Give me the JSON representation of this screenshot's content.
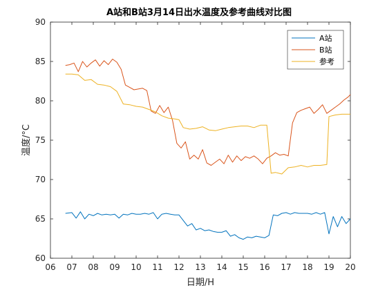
{
  "chart_data": {
    "type": "line",
    "title": "A站和B站3月14日出水温度及参考曲线对比图",
    "xlabel": "日期/H",
    "ylabel": "温度/°C",
    "xlim": [
      6,
      20
    ],
    "ylim": [
      60,
      90
    ],
    "xticks": [
      "06",
      "07",
      "08",
      "09",
      "10",
      "11",
      "12",
      "13",
      "14",
      "15",
      "16",
      "17",
      "18",
      "19",
      "20"
    ],
    "yticks": [
      "60",
      "65",
      "70",
      "75",
      "80",
      "85",
      "90"
    ],
    "grid": false,
    "legend_position": "top-right",
    "series": [
      {
        "name": "A站",
        "color": "#0072BD",
        "x": [
          6.7,
          7.0,
          7.2,
          7.4,
          7.6,
          7.8,
          8.0,
          8.2,
          8.4,
          8.6,
          8.8,
          9.0,
          9.2,
          9.4,
          9.6,
          9.8,
          10.0,
          10.2,
          10.4,
          10.6,
          10.8,
          11.0,
          11.2,
          11.4,
          11.6,
          11.8,
          12.0,
          12.2,
          12.4,
          12.6,
          12.8,
          13.0,
          13.2,
          13.4,
          13.6,
          13.8,
          14.0,
          14.2,
          14.4,
          14.6,
          14.8,
          15.0,
          15.2,
          15.4,
          15.6,
          15.8,
          16.0,
          16.2,
          16.4,
          16.6,
          16.8,
          17.0,
          17.2,
          17.4,
          17.6,
          17.8,
          18.0,
          18.2,
          18.4,
          18.6,
          18.8,
          19.0,
          19.2,
          19.4,
          19.6,
          19.8,
          20.0
        ],
        "y": [
          65.7,
          65.8,
          65.1,
          65.9,
          65.0,
          65.6,
          65.4,
          65.7,
          65.5,
          65.6,
          65.5,
          65.6,
          65.1,
          65.6,
          65.5,
          65.7,
          65.6,
          65.6,
          65.7,
          65.6,
          65.8,
          65.0,
          65.6,
          65.7,
          65.6,
          65.5,
          65.5,
          64.8,
          64.1,
          64.4,
          63.6,
          63.8,
          63.5,
          63.6,
          63.4,
          63.3,
          63.3,
          63.5,
          62.8,
          63.0,
          62.6,
          62.4,
          62.7,
          62.6,
          62.8,
          62.7,
          62.6,
          62.9,
          65.5,
          65.4,
          65.7,
          65.8,
          65.6,
          65.8,
          65.7,
          65.7,
          65.7,
          65.6,
          65.8,
          65.6,
          65.8,
          63.1,
          65.3,
          64.0,
          65.3,
          64.4,
          65.0
        ]
      },
      {
        "name": "B站",
        "color": "#D95319",
        "x": [
          6.7,
          6.9,
          7.1,
          7.3,
          7.5,
          7.7,
          7.9,
          8.1,
          8.3,
          8.5,
          8.7,
          8.9,
          9.1,
          9.3,
          9.5,
          9.7,
          9.9,
          10.1,
          10.3,
          10.5,
          10.7,
          10.9,
          11.1,
          11.3,
          11.5,
          11.7,
          11.9,
          12.1,
          12.3,
          12.5,
          12.7,
          12.9,
          13.1,
          13.3,
          13.5,
          13.7,
          13.9,
          14.1,
          14.3,
          14.5,
          14.7,
          14.9,
          15.1,
          15.3,
          15.5,
          15.7,
          15.9,
          16.1,
          16.3,
          16.5,
          16.7,
          16.9,
          17.1,
          17.3,
          17.5,
          17.7,
          17.9,
          18.1,
          18.3,
          18.5,
          18.7,
          18.9,
          19.1,
          19.3,
          19.5,
          19.7,
          19.9,
          20.0
        ],
        "y": [
          84.5,
          84.6,
          84.8,
          83.7,
          85.0,
          84.3,
          84.8,
          85.2,
          84.4,
          85.1,
          84.6,
          85.3,
          84.9,
          84.0,
          82.0,
          81.7,
          81.4,
          81.5,
          81.6,
          81.3,
          78.7,
          78.4,
          79.4,
          78.5,
          79.2,
          77.5,
          74.6,
          74.0,
          74.8,
          72.6,
          73.1,
          72.6,
          73.8,
          72.1,
          71.8,
          72.2,
          72.6,
          72.0,
          73.1,
          72.2,
          73.0,
          72.4,
          72.9,
          72.7,
          73.0,
          72.6,
          72.0,
          72.7,
          73.0,
          73.4,
          73.1,
          73.2,
          73.0,
          77.2,
          78.5,
          78.8,
          79.0,
          79.2,
          78.4,
          78.9,
          79.5,
          78.4,
          78.8,
          79.2,
          79.6,
          80.1,
          80.5,
          80.8
        ]
      },
      {
        "name": "参考",
        "color": "#EDB120",
        "x": [
          6.7,
          7.0,
          7.3,
          7.6,
          7.9,
          8.2,
          8.5,
          8.8,
          9.1,
          9.4,
          9.7,
          10.0,
          10.3,
          10.6,
          10.9,
          11.2,
          11.5,
          11.8,
          12.0,
          12.2,
          12.5,
          12.8,
          13.1,
          13.4,
          13.7,
          14.0,
          14.3,
          14.6,
          14.9,
          15.2,
          15.5,
          15.8,
          16.1,
          16.3,
          16.5,
          16.8,
          17.1,
          17.4,
          17.7,
          18.0,
          18.3,
          18.6,
          18.9,
          19.0,
          19.3,
          19.6,
          20.0
        ],
        "y": [
          83.4,
          83.4,
          83.3,
          82.6,
          82.7,
          82.1,
          82.0,
          81.8,
          81.2,
          79.6,
          79.5,
          79.3,
          79.2,
          78.9,
          78.6,
          78.1,
          77.8,
          77.7,
          77.6,
          76.6,
          76.4,
          76.5,
          76.7,
          76.3,
          76.2,
          76.4,
          76.6,
          76.7,
          76.8,
          76.8,
          76.6,
          76.9,
          76.9,
          70.8,
          70.9,
          70.7,
          71.5,
          71.6,
          71.8,
          71.6,
          71.8,
          71.8,
          71.9,
          78.0,
          78.2,
          78.3,
          78.3
        ]
      }
    ]
  }
}
